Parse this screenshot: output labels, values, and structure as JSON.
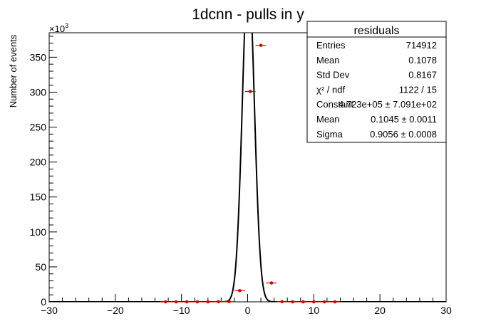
{
  "chart_data": {
    "type": "scatter",
    "title": "1dcnn - pulls in y",
    "xlabel": "",
    "ylabel": "Number of events",
    "y_exponent_label": "×10",
    "y_exponent_power": "3",
    "xlim": [
      -30,
      30
    ],
    "ylim": [
      0,
      385
    ],
    "x_ticks": [
      -30,
      -20,
      -10,
      0,
      10,
      20,
      30
    ],
    "y_ticks": [
      0,
      50,
      100,
      150,
      200,
      250,
      300,
      350
    ],
    "bin_width": 1.6,
    "points": [
      {
        "x": -12.4,
        "y": 0
      },
      {
        "x": -10.8,
        "y": 0
      },
      {
        "x": -9.2,
        "y": 0
      },
      {
        "x": -7.6,
        "y": 0
      },
      {
        "x": -6.0,
        "y": 0
      },
      {
        "x": -4.4,
        "y": 0.2
      },
      {
        "x": -2.8,
        "y": 0.3
      },
      {
        "x": -1.2,
        "y": 16
      },
      {
        "x": 0.4,
        "y": 301
      },
      {
        "x": 2.0,
        "y": 367
      },
      {
        "x": 3.6,
        "y": 27
      },
      {
        "x": 5.2,
        "y": 0.2
      },
      {
        "x": 6.8,
        "y": 0
      },
      {
        "x": 8.4,
        "y": 0
      },
      {
        "x": 10.0,
        "y": 0
      },
      {
        "x": 11.6,
        "y": 0
      },
      {
        "x": 13.2,
        "y": 0
      }
    ],
    "fit": {
      "type": "gaussian",
      "constant": 472.3,
      "mean": 0.1045,
      "sigma": 0.9056
    },
    "marker_color": "#e00000",
    "fit_color": "#000000"
  },
  "stats": {
    "title": "residuals",
    "rows": [
      {
        "label": "Entries",
        "value": "714912"
      },
      {
        "label": "Mean",
        "value": "0.1078"
      },
      {
        "label": "Std Dev",
        "value": "0.8167"
      },
      {
        "label": "χ² / ndf",
        "value": "1122 / 15"
      },
      {
        "label": "Constant",
        "value": "4.723e+05 ± 7.091e+02"
      },
      {
        "label": "Mean",
        "value": "0.1045 ± 0.0011"
      },
      {
        "label": "Sigma",
        "value": "0.9056 ± 0.0008"
      }
    ]
  }
}
